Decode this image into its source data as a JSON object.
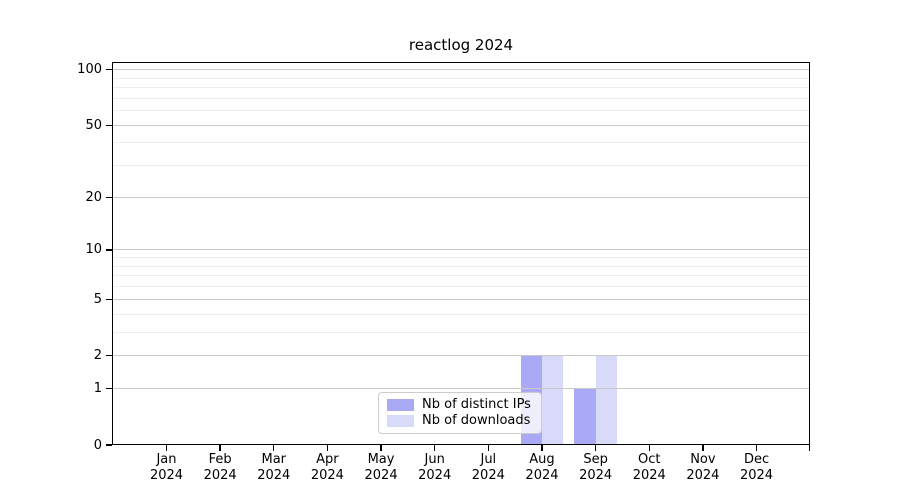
{
  "chart_data": {
    "type": "bar",
    "title": "reactlog 2024",
    "x": {
      "months": [
        "Jan",
        "Feb",
        "Mar",
        "Apr",
        "May",
        "Jun",
        "Jul",
        "Aug",
        "Sep",
        "Oct",
        "Nov",
        "Dec"
      ],
      "year": "2024"
    },
    "series": [
      {
        "name": "Nb of distinct IPs",
        "color": "#a9a9f6",
        "values": [
          0,
          0,
          0,
          0,
          0,
          0,
          0,
          2,
          1,
          0,
          0,
          0
        ]
      },
      {
        "name": "Nb of downloads",
        "color": "#d9d9f9",
        "values": [
          0,
          0,
          0,
          0,
          0,
          0,
          0,
          2,
          2,
          0,
          0,
          0
        ]
      }
    ],
    "y_axis": {
      "scale": "log1p",
      "ticks": [
        0,
        1,
        2,
        5,
        10,
        20,
        50,
        100
      ],
      "tick_labels": [
        "0",
        "1",
        "2",
        "5",
        "10",
        "20",
        "50",
        "100"
      ],
      "minor_ticks": [
        3,
        4,
        6,
        7,
        8,
        9,
        30,
        40,
        60,
        70,
        80,
        90
      ],
      "max": 110
    },
    "legend": {
      "position": "bottom-center"
    },
    "grid": true
  },
  "colors": {
    "axis": "#000000",
    "text": "#000000",
    "major_grid": "#c9c9c9",
    "minor_grid": "#ececec",
    "legend_border": "#cccccc",
    "legend_bg": "rgba(255,255,255,0.8)"
  }
}
